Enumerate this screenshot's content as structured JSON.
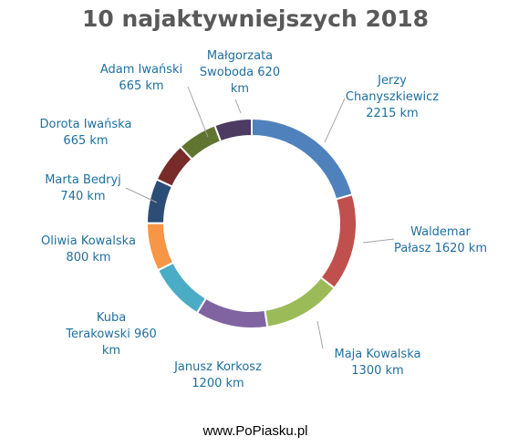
{
  "chart_data": {
    "type": "pie",
    "donut": true,
    "title": "10 najaktywniejszych 2018",
    "unit": "km",
    "slices": [
      {
        "label_lines": [
          "Jerzy",
          "Chanyszkiewicz",
          "2215 km"
        ],
        "value": 2215,
        "color": "#4f81bd"
      },
      {
        "label_lines": [
          "Waldemar",
          "Pałasz 1620 km"
        ],
        "value": 1620,
        "color": "#c0504d"
      },
      {
        "label_lines": [
          "Maja Kowalska",
          "1300 km"
        ],
        "value": 1300,
        "color": "#9bbb59"
      },
      {
        "label_lines": [
          "Janusz Korkosz",
          "1200 km"
        ],
        "value": 1200,
        "color": "#8064a2"
      },
      {
        "label_lines": [
          "Kuba",
          "Terakowski 960",
          "km"
        ],
        "value": 960,
        "color": "#4bacc6"
      },
      {
        "label_lines": [
          "Oliwia Kowalska",
          "800 km"
        ],
        "value": 800,
        "color": "#f79646"
      },
      {
        "label_lines": [
          "Marta Bedryj",
          "740 km"
        ],
        "value": 740,
        "color": "#2c4d75"
      },
      {
        "label_lines": [
          "Dorota Iwańska",
          "665 km"
        ],
        "value": 665,
        "color": "#772c2a"
      },
      {
        "label_lines": [
          "Adam Iwański",
          "665 km"
        ],
        "value": 665,
        "color": "#5f7530"
      },
      {
        "label_lines": [
          "Małgorzata",
          "Swoboda 620",
          "km"
        ],
        "value": 620,
        "color": "#4d3b62"
      }
    ]
  },
  "footer": {
    "text": "www.PoPiasku.pl"
  }
}
